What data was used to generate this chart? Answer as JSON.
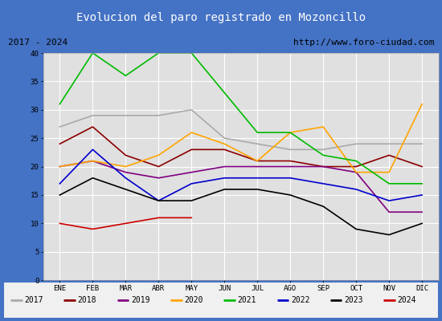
{
  "title": "Evolucion del paro registrado en Mozoncillo",
  "subtitle_left": "2017 - 2024",
  "subtitle_right": "http://www.foro-ciudad.com",
  "months": [
    "ENE",
    "FEB",
    "MAR",
    "ABR",
    "MAY",
    "JUN",
    "JUL",
    "AGO",
    "SEP",
    "OCT",
    "NOV",
    "DIC"
  ],
  "series": {
    "2017": {
      "color": "#aaaaaa",
      "values": [
        27,
        29,
        29,
        29,
        30,
        25,
        24,
        23,
        23,
        24,
        24,
        24
      ]
    },
    "2018": {
      "color": "#8b0000",
      "values": [
        24,
        27,
        22,
        20,
        23,
        23,
        21,
        21,
        20,
        20,
        22,
        20
      ]
    },
    "2019": {
      "color": "#800080",
      "values": [
        20,
        21,
        19,
        18,
        19,
        20,
        20,
        20,
        20,
        19,
        12,
        12
      ]
    },
    "2020": {
      "color": "#ffa500",
      "values": [
        20,
        21,
        20,
        22,
        26,
        24,
        21,
        26,
        27,
        19,
        19,
        31
      ]
    },
    "2021": {
      "color": "#00bb00",
      "values": [
        31,
        40,
        36,
        40,
        40,
        33,
        26,
        26,
        22,
        21,
        17,
        17
      ]
    },
    "2022": {
      "color": "#0000cc",
      "values": [
        17,
        23,
        18,
        14,
        17,
        18,
        18,
        18,
        17,
        16,
        14,
        15
      ]
    },
    "2023": {
      "color": "#000000",
      "values": [
        15,
        18,
        16,
        14,
        14,
        16,
        16,
        15,
        13,
        9,
        8,
        10
      ]
    },
    "2024": {
      "color": "#cc0000",
      "values": [
        10,
        9,
        10,
        11,
        11,
        null,
        null,
        null,
        null,
        null,
        null,
        null
      ]
    }
  },
  "ylim": [
    0,
    40
  ],
  "yticks": [
    0,
    5,
    10,
    15,
    20,
    25,
    30,
    35,
    40
  ],
  "title_bg": "#4472c4",
  "title_color": "#ffffff",
  "subtitle_bg": "#ffffff",
  "plot_bg": "#e0e0e0",
  "grid_color": "#ffffff",
  "border_color": "#4472c4",
  "legend_bg": "#f0f0f0"
}
